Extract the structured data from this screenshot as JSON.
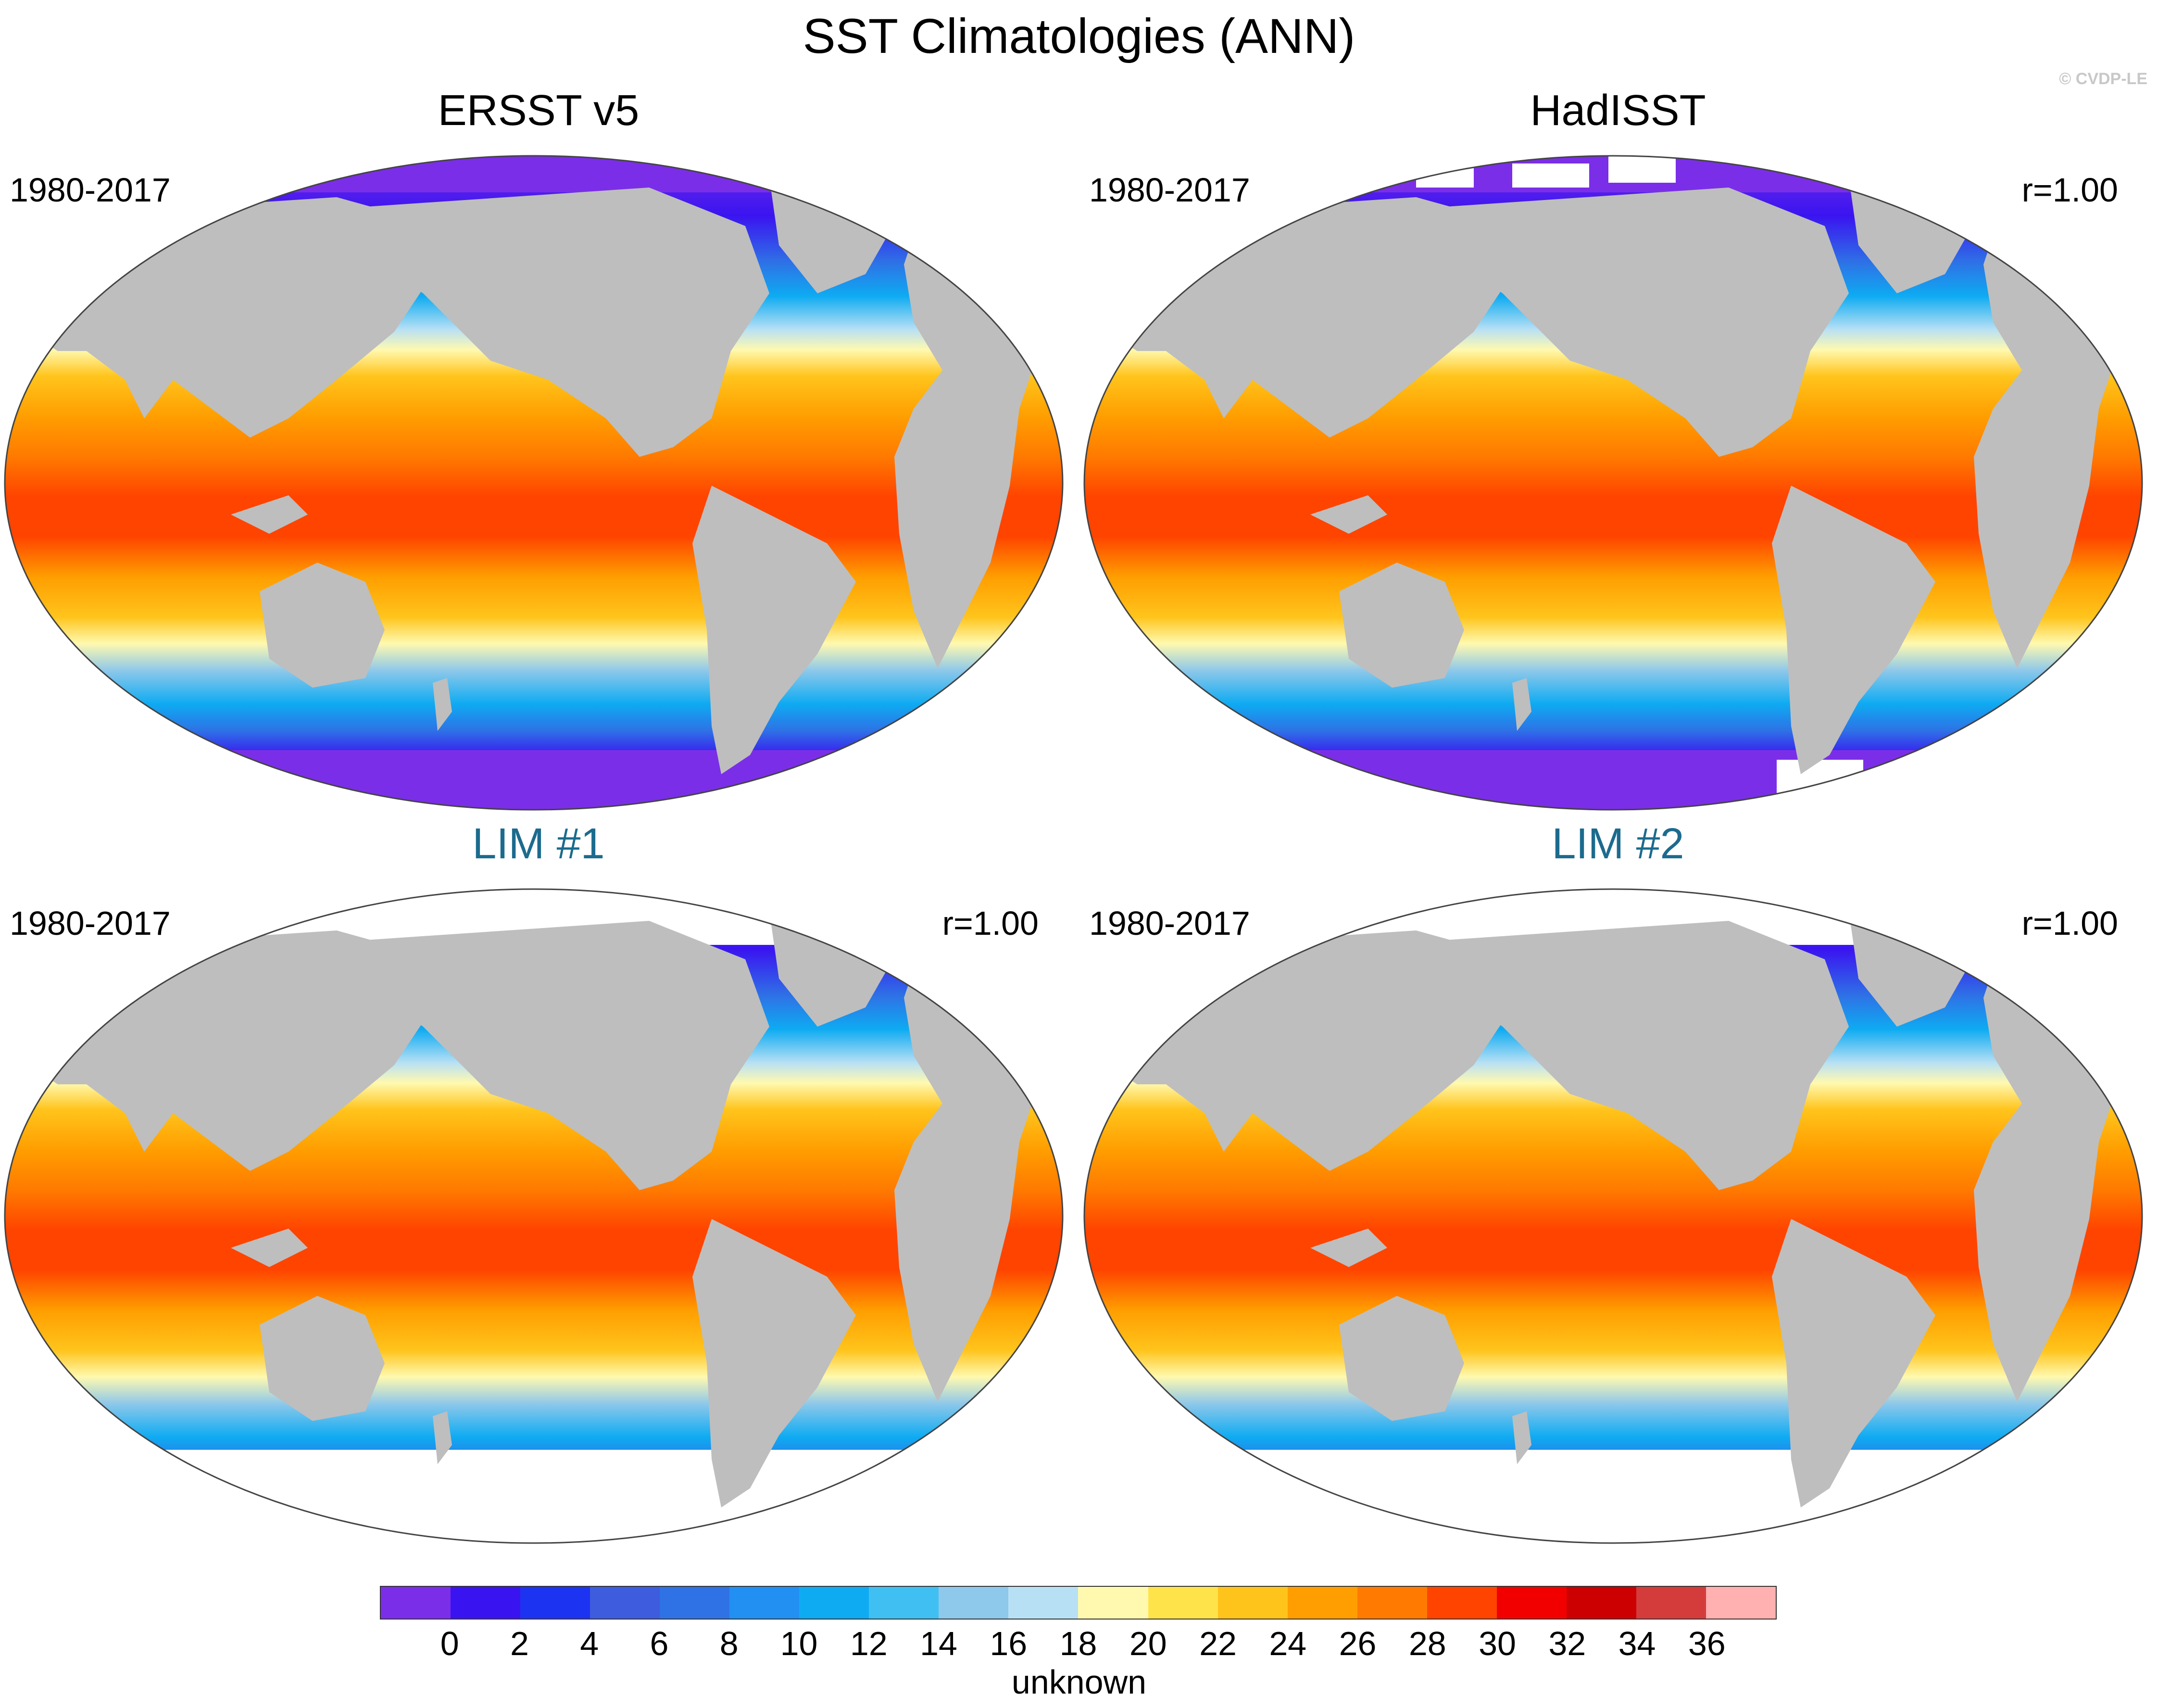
{
  "title": "SST Climatologies (ANN)",
  "watermark": "© CVDP-LE",
  "panels": [
    {
      "title": "ERSST v5",
      "period": "1980-2017",
      "corr": "",
      "type": "obs",
      "polar_ice": "full"
    },
    {
      "title": "HadISST",
      "period": "1980-2017",
      "corr": "r=1.00",
      "type": "obs",
      "polar_ice": "patchy"
    },
    {
      "title": "LIM #1",
      "period": "1980-2017",
      "corr": "r=1.00",
      "type": "model",
      "polar_ice": "none"
    },
    {
      "title": "LIM #2",
      "period": "1980-2017",
      "corr": "r=1.00",
      "type": "model",
      "polar_ice": "none"
    }
  ],
  "colorbar": {
    "colors": [
      "#7b2ee8",
      "#3a14f0",
      "#1d33f2",
      "#3d5cde",
      "#2e72e6",
      "#2190f2",
      "#0eabf2",
      "#3fbff2",
      "#8ec8ea",
      "#b8e0f4",
      "#fff9b0",
      "#ffe34a",
      "#ffc41c",
      "#ff9e00",
      "#ff7a00",
      "#ff4400",
      "#f20000",
      "#cc0000",
      "#d43c3c",
      "#ffb0b0"
    ],
    "labels": [
      "0",
      "2",
      "4",
      "6",
      "8",
      "10",
      "12",
      "14",
      "16",
      "18",
      "20",
      "22",
      "24",
      "26",
      "28",
      "30",
      "32",
      "34",
      "36"
    ],
    "units": "unknown"
  }
}
